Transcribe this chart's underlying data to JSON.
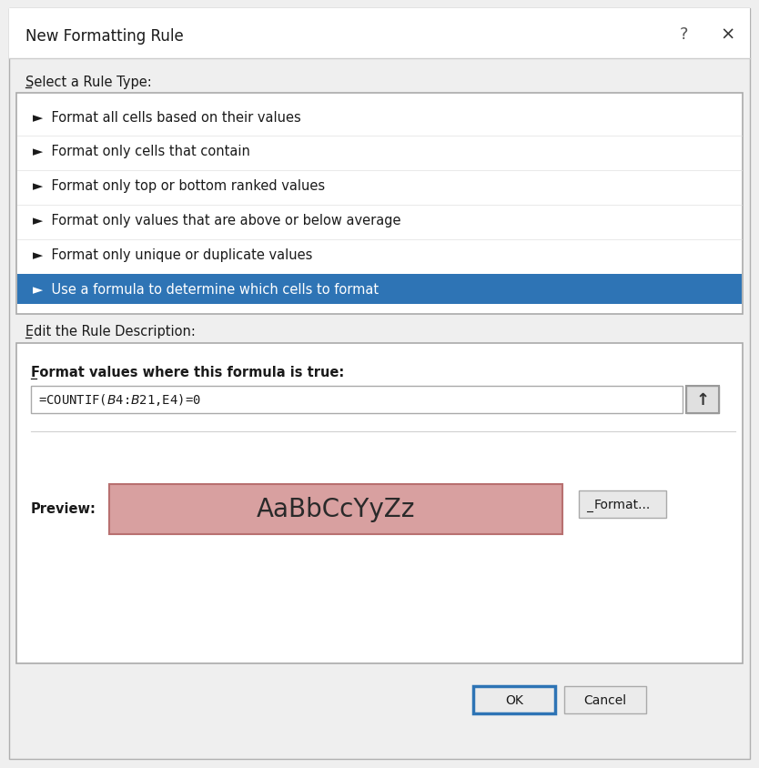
{
  "title": "New Formatting Rule",
  "bg_color": "#efefef",
  "white": "#ffffff",
  "rule_type_label": "Select a Rule Type:",
  "rule_items": [
    "►  Format all cells based on their values",
    "►  Format only cells that contain",
    "►  Format only top or bottom ranked values",
    "►  Format only values that are above or below average",
    "►  Format only unique or duplicate values",
    "►  Use a formula to determine which cells to format"
  ],
  "selected_index": 5,
  "selected_bg": "#2e74b5",
  "selected_fg": "#ffffff",
  "edit_label": "Edit the Rule Description:",
  "formula_label": "Format values where this formula is true:",
  "formula_text": "=COUNTIF($B$4:$B$21,E4)=0",
  "preview_label": "Preview:",
  "preview_text": "AaBbCcYyZz",
  "preview_bg": "#d8a0a0",
  "preview_border": "#b87070",
  "format_btn": "Format...",
  "ok_btn": "OK",
  "cancel_btn": "Cancel",
  "title_fontsize": 12,
  "item_fontsize": 10.5,
  "label_fontsize": 10.5,
  "formula_label_fontsize": 10.5,
  "formula_fontsize": 10,
  "preview_fontsize": 20,
  "btn_fontsize": 10
}
